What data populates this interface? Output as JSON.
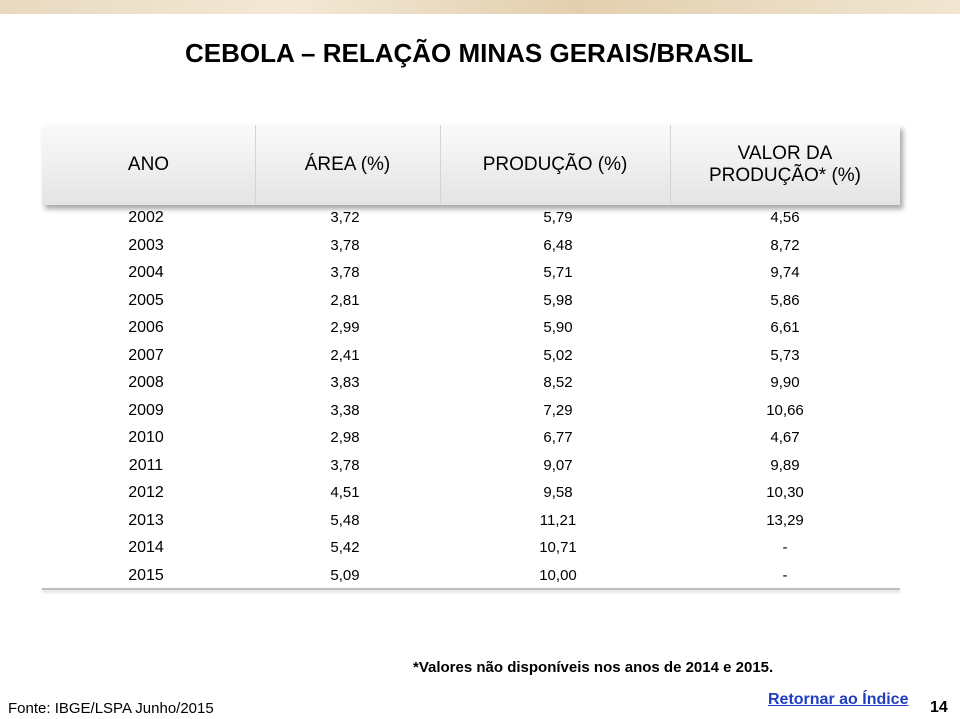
{
  "title": "CEBOLA – RELAÇÃO MINAS GERAIS/BRASIL",
  "table": {
    "headers": [
      "ANO",
      "ÁREA (%)",
      "PRODUÇÃO (%)",
      "VALOR DA PRODUÇÃO* (%)"
    ],
    "rows": [
      [
        "2002",
        "3,72",
        "5,79",
        "4,56"
      ],
      [
        "2003",
        "3,78",
        "6,48",
        "8,72"
      ],
      [
        "2004",
        "3,78",
        "5,71",
        "9,74"
      ],
      [
        "2005",
        "2,81",
        "5,98",
        "5,86"
      ],
      [
        "2006",
        "2,99",
        "5,90",
        "6,61"
      ],
      [
        "2007",
        "2,41",
        "5,02",
        "5,73"
      ],
      [
        "2008",
        "3,83",
        "8,52",
        "9,90"
      ],
      [
        "2009",
        "3,38",
        "7,29",
        "10,66"
      ],
      [
        "2010",
        "2,98",
        "6,77",
        "4,67"
      ],
      [
        "2011",
        "3,78",
        "9,07",
        "9,89"
      ],
      [
        "2012",
        "4,51",
        "9,58",
        "10,30"
      ],
      [
        "2013",
        "5,48",
        "11,21",
        "13,29"
      ],
      [
        "2014",
        "5,42",
        "10,71",
        "-"
      ],
      [
        "2015",
        "5,09",
        "10,00",
        "-"
      ]
    ]
  },
  "note": "*Valores não disponíveis nos anos de 2014 e 2015.",
  "source": "Fonte: IBGE/LSPA  Junho/2015",
  "link": "Retornar ao Índice",
  "page_number": "14"
}
